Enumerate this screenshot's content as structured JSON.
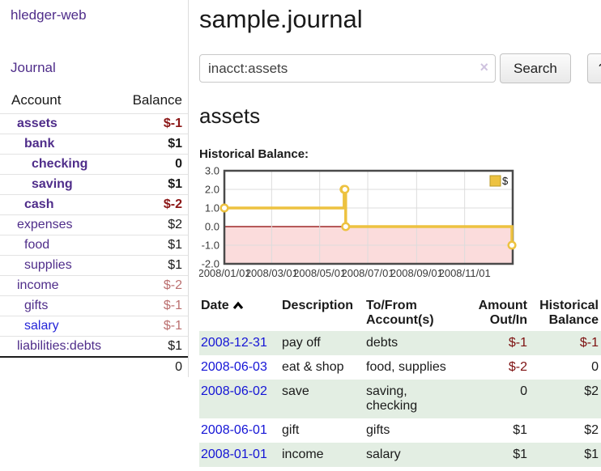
{
  "colors": {
    "accent_purple": "#4f2d8a",
    "link_blue": "#1414d6",
    "neg_strong": "#8b1616",
    "neg_soft": "#bb6f6f",
    "table_row_green": "#e3eee3",
    "series_yellow": "#edc240",
    "neg_region_pink": "#fbdcdc",
    "zero_line_red": "#8b0000"
  },
  "sidebar": {
    "app_title": "hledger-web",
    "journal_link": "Journal",
    "accounts": {
      "account_header": "Account",
      "balance_header": "Balance",
      "rows": [
        {
          "name": "assets",
          "depth": 1,
          "bold": true,
          "balance": "$-1",
          "tone": "neg-strong",
          "link": "visited"
        },
        {
          "name": "bank",
          "depth": 2,
          "bold": true,
          "balance": "$1",
          "tone": "",
          "link": "visited"
        },
        {
          "name": "checking",
          "depth": 3,
          "bold": true,
          "balance": "0",
          "tone": "",
          "link": "visited"
        },
        {
          "name": "saving",
          "depth": 3,
          "bold": true,
          "balance": "$1",
          "tone": "",
          "link": "visited"
        },
        {
          "name": "cash",
          "depth": 2,
          "bold": true,
          "balance": "$-2",
          "tone": "neg-strong",
          "link": "visited"
        },
        {
          "name": "expenses",
          "depth": 1,
          "bold": false,
          "balance": "$2",
          "tone": "",
          "link": "visited"
        },
        {
          "name": "food",
          "depth": 2,
          "bold": false,
          "balance": "$1",
          "tone": "",
          "link": "visited"
        },
        {
          "name": "supplies",
          "depth": 2,
          "bold": false,
          "balance": "$1",
          "tone": "",
          "link": "visited"
        },
        {
          "name": "income",
          "depth": 1,
          "bold": false,
          "balance": "$-2",
          "tone": "neg-soft",
          "link": "visited"
        },
        {
          "name": "gifts",
          "depth": 2,
          "bold": false,
          "balance": "$-1",
          "tone": "neg-soft",
          "link": "visited"
        },
        {
          "name": "salary",
          "depth": 2,
          "bold": false,
          "balance": "$-1",
          "tone": "neg-soft",
          "link": "unvisited"
        },
        {
          "name": "liabilities:debts",
          "depth": 1,
          "bold": false,
          "balance": "$1",
          "tone": "",
          "link": "visited"
        }
      ],
      "total": "0"
    }
  },
  "main": {
    "title": "sample.journal",
    "search": {
      "value": "inacct:assets",
      "clear_icon": "×",
      "button_label": "Search",
      "help_label": "?"
    },
    "account_heading": "assets",
    "chart_label": "Historical Balance:",
    "register": {
      "headers": {
        "date": "Date",
        "description": "Description",
        "accounts": "To/From\nAccount(s)",
        "amount": "Amount\nOut/In",
        "balance": "Historical\nBalance"
      },
      "rows": [
        {
          "date": "2008-12-31",
          "description": "pay off",
          "accounts": "debts",
          "amount": "$-1",
          "amount_neg": true,
          "balance": "$-1",
          "balance_neg": true
        },
        {
          "date": "2008-06-03",
          "description": "eat & shop",
          "accounts": "food, supplies",
          "amount": "$-2",
          "amount_neg": true,
          "balance": "0",
          "balance_neg": false
        },
        {
          "date": "2008-06-02",
          "description": "save",
          "accounts": "saving,\nchecking",
          "amount": "0",
          "amount_neg": false,
          "balance": "$2",
          "balance_neg": false
        },
        {
          "date": "2008-06-01",
          "description": "gift",
          "accounts": "gifts",
          "amount": "$1",
          "amount_neg": false,
          "balance": "$2",
          "balance_neg": false
        },
        {
          "date": "2008-01-01",
          "description": "income",
          "accounts": "salary",
          "amount": "$1",
          "amount_neg": false,
          "balance": "$1",
          "balance_neg": false
        }
      ]
    }
  },
  "chart_data": {
    "type": "line",
    "title": "Historical Balance:",
    "step": true,
    "legend_position": "top-right",
    "series": [
      {
        "name": "$",
        "points": [
          [
            "2008-01-01",
            1
          ],
          [
            "2008-06-01",
            2
          ],
          [
            "2008-06-02",
            2
          ],
          [
            "2008-06-03",
            0
          ],
          [
            "2008-12-31",
            -1
          ]
        ]
      }
    ],
    "xlim": [
      "2008/01/01",
      "2009/01/01"
    ],
    "ylim": [
      -2,
      3
    ],
    "yticks": [
      3,
      2,
      1,
      0,
      -1,
      -2
    ],
    "ytick_labels": [
      "3.0",
      "2.0",
      "1.0",
      "0.0",
      "-1.0",
      "-2.0"
    ],
    "xticks": [
      "2008/01/01",
      "2008/03/01",
      "2008/05/01",
      "2008/07/01",
      "2008/09/01",
      "2008/11/01"
    ],
    "grid": true,
    "negative_region_shaded": true
  }
}
